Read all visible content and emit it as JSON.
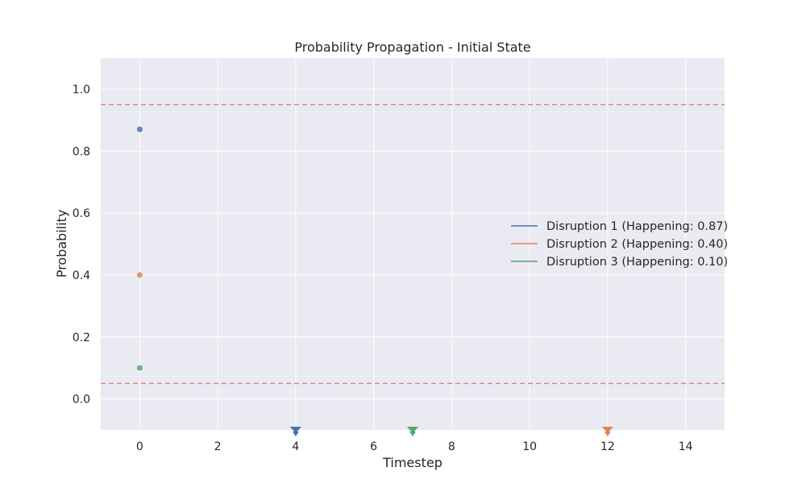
{
  "chart_data": {
    "type": "scatter",
    "title": "Probability Propagation - Initial State",
    "xlabel": "Timestep",
    "ylabel": "Probability",
    "xlim": [
      -1,
      15
    ],
    "ylim": [
      -0.1,
      1.1
    ],
    "xticks": [
      0,
      2,
      4,
      6,
      8,
      10,
      12,
      14
    ],
    "yticks": [
      0.0,
      0.2,
      0.4,
      0.6,
      0.8,
      1.0
    ],
    "grid": true,
    "legend_position": "center-right",
    "thresholds": [
      {
        "y": 0.95,
        "style": "dashed",
        "color": "#d9888a"
      },
      {
        "y": 0.05,
        "style": "dashed",
        "color": "#d9888a"
      }
    ],
    "series": [
      {
        "name": "Disruption 1 (Happening: 0.87)",
        "color": "#4c72b0",
        "points": [
          {
            "x": 0,
            "y": 0.87
          }
        ],
        "marker_x": 4
      },
      {
        "name": "Disruption 2 (Happening: 0.40)",
        "color": "#dd8452",
        "points": [
          {
            "x": 0,
            "y": 0.4
          }
        ],
        "marker_x": 12
      },
      {
        "name": "Disruption 3 (Happening: 0.10)",
        "color": "#55a868",
        "points": [
          {
            "x": 0,
            "y": 0.1
          }
        ],
        "marker_x": 7
      }
    ]
  }
}
